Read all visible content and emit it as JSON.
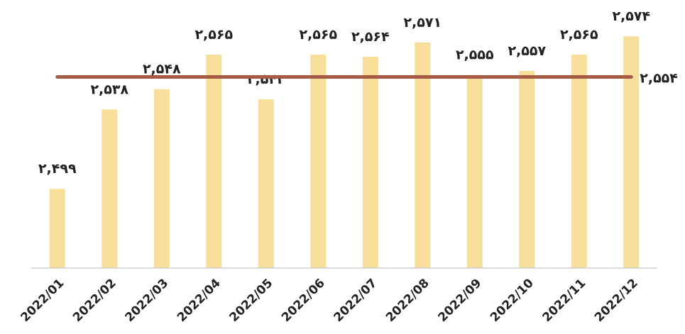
{
  "chart_data": {
    "type": "bar",
    "categories": [
      "2022/01",
      "2022/02",
      "2022/03",
      "2022/04",
      "2022/05",
      "2022/06",
      "2022/07",
      "2022/08",
      "2022/09",
      "2022/10",
      "2022/11",
      "2022/12"
    ],
    "values": [
      2499,
      2538,
      2548,
      2565,
      2543,
      2565,
      2564,
      2571,
      2555,
      2557,
      2565,
      2574
    ],
    "value_labels": [
      "۲,۴۹۹",
      "۲,۵۳۸",
      "۲,۵۴۸",
      "۲,۵۶۵",
      "۲,۵۴۳",
      "۲,۵۶۵",
      "۲,۵۶۴",
      "۲,۵۷۱",
      "۲,۵۵۵",
      "۲,۵۵۷",
      "۲,۵۶۵",
      "۲,۵۷۴"
    ],
    "color": "#f7df9b",
    "average_line": {
      "value": 2554,
      "value_label": "۲,۵۵۴",
      "color": "#a65b45"
    },
    "ylim": [
      2460,
      2580
    ]
  }
}
